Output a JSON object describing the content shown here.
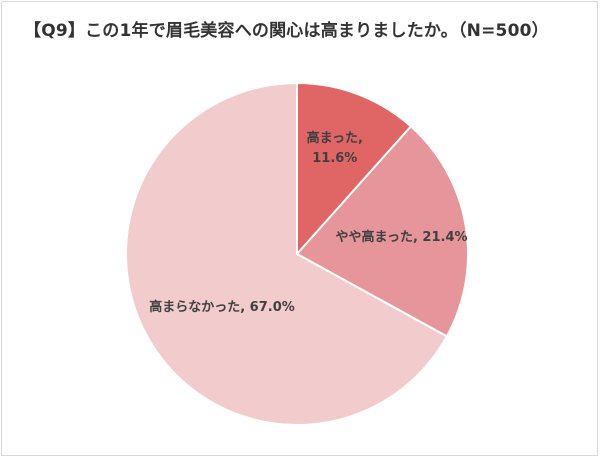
{
  "chart_data": {
    "type": "pie",
    "title": "【Q9】この1年で眉毛美容への関心は高まりましたか。（N=500）",
    "start_angle": "12 o'clock",
    "direction": "clockwise",
    "slices": [
      {
        "label_lines": [
          "高まった,",
          "11.6%"
        ],
        "category": "高まった",
        "value": 11.6,
        "color": "#e06666"
      },
      {
        "label_lines": [
          "やや高まった, 21.4%"
        ],
        "category": "やや高まった",
        "value": 21.4,
        "color": "#e6959a"
      },
      {
        "label_lines": [
          "高まらなかった, 67.0%"
        ],
        "category": "高まらなかった",
        "value": 67.0,
        "color": "#f2cccc"
      }
    ],
    "legend": "none",
    "slice_border_color": "#ffffff"
  }
}
